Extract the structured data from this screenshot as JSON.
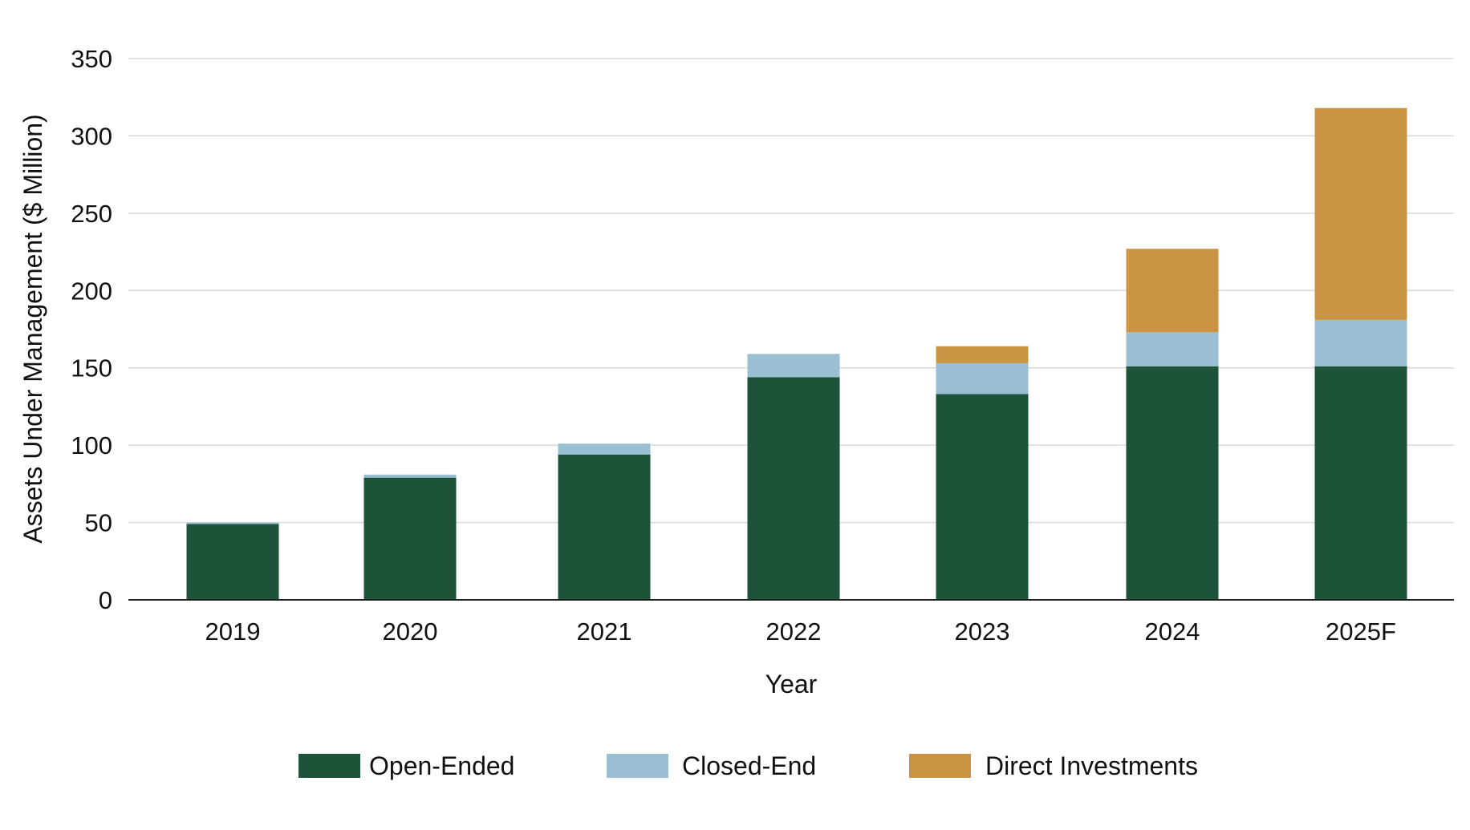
{
  "chart_data": {
    "type": "bar",
    "stacked": true,
    "title": "",
    "xlabel": "Year",
    "ylabel": "Assets Under Management ($ Million)",
    "ylim": [
      0,
      350
    ],
    "yticks": [
      0,
      50,
      100,
      150,
      200,
      250,
      300,
      350
    ],
    "grid": true,
    "legend_position": "bottom",
    "categories": [
      "2019",
      "2020",
      "2021",
      "2022",
      "2023",
      "2024",
      "2025F"
    ],
    "series": [
      {
        "name": "Open-Ended",
        "color": "#1d5339",
        "values": [
          49,
          79,
          94,
          144,
          133,
          151,
          151
        ]
      },
      {
        "name": "Closed-End",
        "color": "#9abfd3",
        "values": [
          1,
          2,
          7,
          15,
          20,
          22,
          30
        ]
      },
      {
        "name": "Direct Investments",
        "color": "#cb9444",
        "values": [
          0,
          0,
          0,
          0,
          11,
          54,
          137
        ]
      }
    ]
  }
}
